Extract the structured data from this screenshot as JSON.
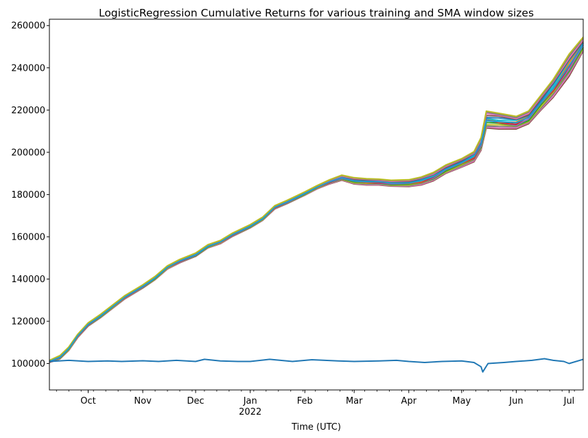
{
  "chart_data": {
    "type": "line",
    "title": "LogisticRegression Cumulative Returns for various training and SMA window sizes",
    "xlabel": "Time (UTC)",
    "ylabel": "",
    "ylim": [
      87500,
      263000
    ],
    "xlim": [
      "2021-09-09",
      "2022-07-09"
    ],
    "grid": false,
    "legend": "none",
    "yticks": [
      100000,
      120000,
      140000,
      160000,
      180000,
      200000,
      220000,
      240000,
      260000
    ],
    "xticks": [
      {
        "date": "2021-10-01",
        "label": "Oct"
      },
      {
        "date": "2021-11-01",
        "label": "Nov"
      },
      {
        "date": "2021-12-01",
        "label": "Dec"
      },
      {
        "date": "2022-01-01",
        "label": "Jan",
        "sublabel": "2022"
      },
      {
        "date": "2022-02-01",
        "label": "Feb"
      },
      {
        "date": "2022-03-01",
        "label": "Mar"
      },
      {
        "date": "2022-04-01",
        "label": "Apr"
      },
      {
        "date": "2022-05-01",
        "label": "May"
      },
      {
        "date": "2022-06-01",
        "label": "Jun"
      },
      {
        "date": "2022-07-01",
        "label": "Jul"
      }
    ],
    "strategy_envelope": {
      "x": [
        "2021-09-09",
        "2021-09-15",
        "2021-09-20",
        "2021-09-25",
        "2021-10-01",
        "2021-10-08",
        "2021-10-15",
        "2021-10-22",
        "2021-11-01",
        "2021-11-08",
        "2021-11-15",
        "2021-11-22",
        "2021-12-01",
        "2021-12-08",
        "2021-12-15",
        "2021-12-22",
        "2022-01-01",
        "2022-01-08",
        "2022-01-15",
        "2022-01-22",
        "2022-02-01",
        "2022-02-08",
        "2022-02-15",
        "2022-02-22",
        "2022-03-01",
        "2022-03-08",
        "2022-03-15",
        "2022-03-22",
        "2022-04-01",
        "2022-04-08",
        "2022-04-15",
        "2022-04-22",
        "2022-05-01",
        "2022-05-08",
        "2022-05-12",
        "2022-05-15",
        "2022-05-22",
        "2022-06-01",
        "2022-06-08",
        "2022-06-15",
        "2022-06-22",
        "2022-07-01",
        "2022-07-09"
      ],
      "center": [
        101000,
        103000,
        107000,
        113000,
        118500,
        122500,
        127000,
        131500,
        136500,
        140500,
        145500,
        148500,
        151500,
        155500,
        157500,
        161000,
        165000,
        168500,
        174000,
        176500,
        180500,
        183500,
        186000,
        188000,
        186500,
        186000,
        186000,
        185500,
        185500,
        186500,
        188500,
        192000,
        195000,
        198000,
        204000,
        215000,
        214500,
        214000,
        216500,
        223500,
        230000,
        241000,
        251000
      ],
      "upper": [
        101500,
        103800,
        107800,
        113800,
        119300,
        123300,
        127800,
        132300,
        137300,
        141300,
        146300,
        149300,
        152300,
        156300,
        158300,
        161800,
        165800,
        169300,
        174800,
        177300,
        181300,
        184300,
        187000,
        189200,
        188000,
        187500,
        187300,
        186800,
        187000,
        188300,
        190500,
        194000,
        197000,
        200300,
        207000,
        219500,
        218500,
        217000,
        219500,
        227000,
        234500,
        246500,
        254500
      ],
      "lower": [
        100500,
        102200,
        106200,
        112200,
        117700,
        121700,
        126200,
        130700,
        135700,
        139700,
        144700,
        147700,
        150700,
        154700,
        156700,
        160200,
        164200,
        167700,
        173200,
        175700,
        179700,
        182700,
        185000,
        186800,
        185000,
        184500,
        184500,
        184000,
        183800,
        184500,
        186500,
        190000,
        193000,
        195500,
        201000,
        211500,
        211000,
        211000,
        213500,
        220000,
        226000,
        236000,
        248000
      ]
    },
    "series": [
      {
        "x": [
          "2021-09-09",
          "2021-09-20",
          "2021-10-01",
          "2021-10-12",
          "2021-10-20",
          "2021-11-01",
          "2021-11-10",
          "2021-11-20",
          "2021-12-01",
          "2021-12-06",
          "2021-12-15",
          "2021-12-25",
          "2022-01-01",
          "2022-01-12",
          "2022-01-25",
          "2022-02-05",
          "2022-02-20",
          "2022-03-01",
          "2022-03-15",
          "2022-03-25",
          "2022-04-01",
          "2022-04-10",
          "2022-04-20",
          "2022-05-01",
          "2022-05-08",
          "2022-05-12",
          "2022-05-13",
          "2022-05-16",
          "2022-05-25",
          "2022-06-01",
          "2022-06-10",
          "2022-06-17",
          "2022-06-22",
          "2022-06-28",
          "2022-07-01",
          "2022-07-09"
        ],
        "values": [
          101000,
          101500,
          101000,
          101200,
          101000,
          101300,
          101000,
          101500,
          101000,
          102000,
          101200,
          101000,
          101000,
          102000,
          101000,
          101800,
          101200,
          101000,
          101200,
          101500,
          101000,
          100500,
          101000,
          101200,
          100500,
          98500,
          96000,
          100000,
          100500,
          101000,
          101500,
          102300,
          101500,
          101000,
          100000,
          102000
        ]
      }
    ]
  }
}
